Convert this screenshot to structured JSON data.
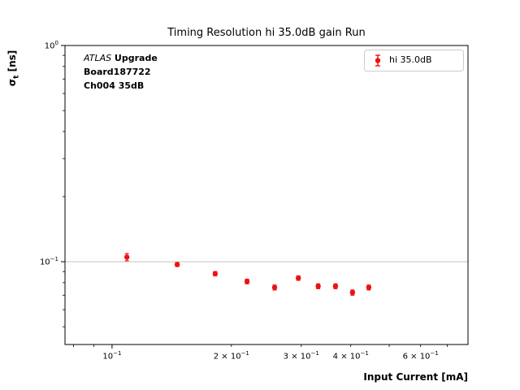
{
  "title": "Timing Resolution hi 35.0dB gain Run",
  "axes": {
    "xlabel": "Input Current [mA]",
    "ylabel_sigma": "σ",
    "ylabel_sub": "t",
    "ylabel_unit": " [ns]"
  },
  "annotation": {
    "line1_italic": "ATLAS",
    "line1_bold": " Upgrade",
    "line2": "Board187722",
    "line3": "Ch004 35dB"
  },
  "legend": {
    "label": "hi 35.0dB",
    "position": "upper right"
  },
  "chart_data": {
    "type": "scatter",
    "title": "Timing Resolution hi 35.0dB gain Run",
    "xlabel": "Input Current [mA]",
    "ylabel": "sigma_t [ns]",
    "xscale": "log",
    "yscale": "log",
    "xlim": [
      0.0761,
      0.79
    ],
    "ylim": [
      0.0414,
      1.0
    ],
    "grid": "horizontal-major-only",
    "colors": {
      "marker": "#ee1111",
      "grid": "#b0b0b0",
      "spine": "#000000",
      "legend_edge": "#cccccc"
    },
    "y_gridlines": [
      0.1
    ],
    "series": [
      {
        "name": "hi 35.0dB",
        "x": [
          0.109,
          0.146,
          0.182,
          0.219,
          0.257,
          0.295,
          0.331,
          0.366,
          0.404,
          0.444
        ],
        "y": [
          0.105,
          0.097,
          0.088,
          0.081,
          0.076,
          0.084,
          0.077,
          0.077,
          0.072,
          0.076
        ],
        "yerr": [
          0.004,
          0.002,
          0.002,
          0.002,
          0.002,
          0.002,
          0.002,
          0.002,
          0.002,
          0.002
        ]
      }
    ],
    "x_ticks": [
      {
        "v": 0.08
      },
      {
        "v": 0.09
      },
      {
        "v": 0.1,
        "major": true,
        "exp": "−1"
      },
      {
        "v": 0.2,
        "coeff": "2",
        "exp": "−1"
      },
      {
        "v": 0.3,
        "coeff": "3",
        "exp": "−1"
      },
      {
        "v": 0.4,
        "coeff": "4",
        "exp": "−1"
      },
      {
        "v": 0.5
      },
      {
        "v": 0.6,
        "coeff": "6",
        "exp": "−1"
      },
      {
        "v": 0.7
      }
    ],
    "y_ticks": [
      {
        "v": 1.0,
        "major": true,
        "exp": "0"
      },
      {
        "v": 0.9
      },
      {
        "v": 0.8
      },
      {
        "v": 0.7
      },
      {
        "v": 0.6
      },
      {
        "v": 0.5
      },
      {
        "v": 0.4
      },
      {
        "v": 0.3
      },
      {
        "v": 0.2
      },
      {
        "v": 0.1,
        "major": true,
        "exp": "−1"
      },
      {
        "v": 0.09
      },
      {
        "v": 0.08
      },
      {
        "v": 0.07
      },
      {
        "v": 0.06
      },
      {
        "v": 0.05
      }
    ]
  }
}
